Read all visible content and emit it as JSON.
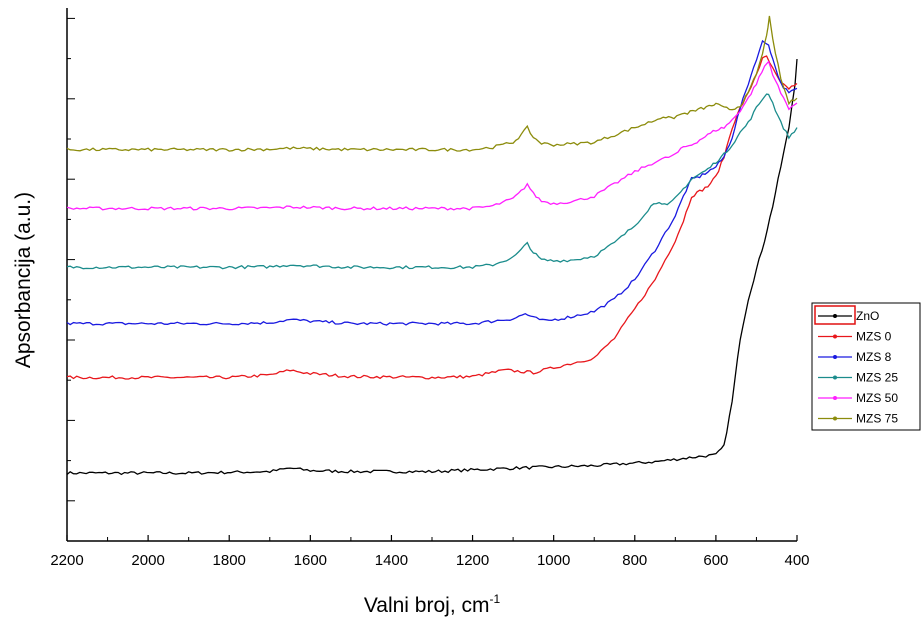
{
  "chart_data": {
    "type": "line",
    "xlabel": "Valni broj, cm",
    "xlabel_sup": "-1",
    "ylabel": "Apsorbancija (a.u.)",
    "xlim": [
      2200,
      400
    ],
    "x_reversed": true,
    "ylim": [
      0,
      1
    ],
    "y_ticks_labeled": false,
    "grid": false,
    "legend_position": "right",
    "x_ticks": [
      "2200",
      "2000",
      "1800",
      "1600",
      "1400",
      "1200",
      "1000",
      "800",
      "600",
      "400"
    ],
    "series": [
      {
        "name": "ZnO",
        "color": "#000000",
        "points": [
          [
            2200,
            0.055
          ],
          [
            1900,
            0.055
          ],
          [
            1700,
            0.058
          ],
          [
            1650,
            0.065
          ],
          [
            1600,
            0.06
          ],
          [
            1500,
            0.058
          ],
          [
            1300,
            0.058
          ],
          [
            1100,
            0.065
          ],
          [
            900,
            0.07
          ],
          [
            750,
            0.078
          ],
          [
            650,
            0.088
          ],
          [
            600,
            0.092
          ],
          [
            580,
            0.11
          ],
          [
            560,
            0.2
          ],
          [
            540,
            0.33
          ],
          [
            520,
            0.41
          ],
          [
            500,
            0.47
          ],
          [
            480,
            0.53
          ],
          [
            460,
            0.6
          ],
          [
            440,
            0.68
          ],
          [
            420,
            0.76
          ],
          [
            405,
            0.85
          ],
          [
            400,
            0.9
          ]
        ]
      },
      {
        "name": "MZS 0",
        "color": "#e8171c",
        "points": [
          [
            2200,
            0.25
          ],
          [
            2000,
            0.25
          ],
          [
            1800,
            0.25
          ],
          [
            1700,
            0.255
          ],
          [
            1650,
            0.265
          ],
          [
            1600,
            0.258
          ],
          [
            1500,
            0.252
          ],
          [
            1300,
            0.25
          ],
          [
            1200,
            0.252
          ],
          [
            1120,
            0.265
          ],
          [
            1050,
            0.26
          ],
          [
            1000,
            0.27
          ],
          [
            950,
            0.28
          ],
          [
            900,
            0.29
          ],
          [
            850,
            0.33
          ],
          [
            800,
            0.39
          ],
          [
            750,
            0.45
          ],
          [
            700,
            0.53
          ],
          [
            680,
            0.57
          ],
          [
            660,
            0.62
          ],
          [
            640,
            0.63
          ],
          [
            620,
            0.64
          ],
          [
            600,
            0.66
          ],
          [
            580,
            0.7
          ],
          [
            560,
            0.76
          ],
          [
            540,
            0.8
          ],
          [
            520,
            0.83
          ],
          [
            500,
            0.87
          ],
          [
            485,
            0.9
          ],
          [
            475,
            0.905
          ],
          [
            460,
            0.88
          ],
          [
            440,
            0.85
          ],
          [
            420,
            0.84
          ],
          [
            400,
            0.85
          ]
        ]
      },
      {
        "name": "MZS 8",
        "color": "#1a1ae0",
        "points": [
          [
            2200,
            0.36
          ],
          [
            2000,
            0.36
          ],
          [
            1800,
            0.36
          ],
          [
            1700,
            0.362
          ],
          [
            1650,
            0.368
          ],
          [
            1600,
            0.365
          ],
          [
            1500,
            0.36
          ],
          [
            1300,
            0.36
          ],
          [
            1200,
            0.36
          ],
          [
            1100,
            0.37
          ],
          [
            1070,
            0.38
          ],
          [
            1050,
            0.372
          ],
          [
            1020,
            0.365
          ],
          [
            950,
            0.375
          ],
          [
            900,
            0.385
          ],
          [
            850,
            0.41
          ],
          [
            800,
            0.45
          ],
          [
            750,
            0.51
          ],
          [
            700,
            0.58
          ],
          [
            680,
            0.62
          ],
          [
            660,
            0.655
          ],
          [
            640,
            0.66
          ],
          [
            620,
            0.67
          ],
          [
            600,
            0.68
          ],
          [
            580,
            0.7
          ],
          [
            560,
            0.74
          ],
          [
            540,
            0.8
          ],
          [
            520,
            0.85
          ],
          [
            500,
            0.9
          ],
          [
            485,
            0.935
          ],
          [
            470,
            0.93
          ],
          [
            460,
            0.9
          ],
          [
            440,
            0.85
          ],
          [
            420,
            0.83
          ],
          [
            400,
            0.84
          ]
        ]
      },
      {
        "name": "MZS 25",
        "color": "#1b8c8c",
        "points": [
          [
            2200,
            0.475
          ],
          [
            2000,
            0.475
          ],
          [
            1800,
            0.475
          ],
          [
            1700,
            0.476
          ],
          [
            1650,
            0.48
          ],
          [
            1600,
            0.478
          ],
          [
            1500,
            0.475
          ],
          [
            1300,
            0.475
          ],
          [
            1200,
            0.475
          ],
          [
            1150,
            0.48
          ],
          [
            1100,
            0.495
          ],
          [
            1080,
            0.51
          ],
          [
            1065,
            0.525
          ],
          [
            1050,
            0.505
          ],
          [
            1030,
            0.49
          ],
          [
            1000,
            0.488
          ],
          [
            950,
            0.49
          ],
          [
            900,
            0.498
          ],
          [
            850,
            0.525
          ],
          [
            800,
            0.56
          ],
          [
            760,
            0.6
          ],
          [
            740,
            0.61
          ],
          [
            720,
            0.6
          ],
          [
            700,
            0.615
          ],
          [
            680,
            0.635
          ],
          [
            660,
            0.655
          ],
          [
            640,
            0.665
          ],
          [
            620,
            0.675
          ],
          [
            600,
            0.69
          ],
          [
            580,
            0.705
          ],
          [
            560,
            0.725
          ],
          [
            540,
            0.75
          ],
          [
            520,
            0.77
          ],
          [
            500,
            0.8
          ],
          [
            480,
            0.825
          ],
          [
            470,
            0.83
          ],
          [
            460,
            0.81
          ],
          [
            440,
            0.77
          ],
          [
            420,
            0.74
          ],
          [
            400,
            0.76
          ]
        ]
      },
      {
        "name": "MZS 50",
        "color": "#ff1fff",
        "points": [
          [
            2200,
            0.595
          ],
          [
            2000,
            0.595
          ],
          [
            1800,
            0.595
          ],
          [
            1700,
            0.596
          ],
          [
            1650,
            0.598
          ],
          [
            1600,
            0.597
          ],
          [
            1500,
            0.595
          ],
          [
            1300,
            0.595
          ],
          [
            1200,
            0.595
          ],
          [
            1150,
            0.6
          ],
          [
            1100,
            0.615
          ],
          [
            1080,
            0.63
          ],
          [
            1065,
            0.645
          ],
          [
            1050,
            0.625
          ],
          [
            1030,
            0.61
          ],
          [
            1000,
            0.605
          ],
          [
            950,
            0.61
          ],
          [
            900,
            0.62
          ],
          [
            850,
            0.645
          ],
          [
            800,
            0.67
          ],
          [
            750,
            0.69
          ],
          [
            700,
            0.705
          ],
          [
            680,
            0.72
          ],
          [
            660,
            0.725
          ],
          [
            640,
            0.735
          ],
          [
            620,
            0.745
          ],
          [
            600,
            0.755
          ],
          [
            580,
            0.76
          ],
          [
            560,
            0.775
          ],
          [
            540,
            0.795
          ],
          [
            520,
            0.82
          ],
          [
            500,
            0.85
          ],
          [
            480,
            0.885
          ],
          [
            470,
            0.895
          ],
          [
            460,
            0.87
          ],
          [
            440,
            0.83
          ],
          [
            420,
            0.8
          ],
          [
            400,
            0.81
          ]
        ]
      },
      {
        "name": "MZS 75",
        "color": "#8c8c0c",
        "points": [
          [
            2200,
            0.715
          ],
          [
            2000,
            0.715
          ],
          [
            1800,
            0.715
          ],
          [
            1700,
            0.716
          ],
          [
            1650,
            0.718
          ],
          [
            1600,
            0.717
          ],
          [
            1500,
            0.715
          ],
          [
            1300,
            0.715
          ],
          [
            1200,
            0.715
          ],
          [
            1150,
            0.72
          ],
          [
            1100,
            0.73
          ],
          [
            1080,
            0.745
          ],
          [
            1065,
            0.76
          ],
          [
            1050,
            0.74
          ],
          [
            1030,
            0.728
          ],
          [
            1000,
            0.725
          ],
          [
            950,
            0.727
          ],
          [
            900,
            0.73
          ],
          [
            850,
            0.745
          ],
          [
            800,
            0.76
          ],
          [
            750,
            0.775
          ],
          [
            730,
            0.783
          ],
          [
            710,
            0.778
          ],
          [
            690,
            0.786
          ],
          [
            670,
            0.79
          ],
          [
            650,
            0.795
          ],
          [
            630,
            0.8
          ],
          [
            610,
            0.805
          ],
          [
            600,
            0.808
          ],
          [
            580,
            0.8
          ],
          [
            560,
            0.797
          ],
          [
            540,
            0.805
          ],
          [
            520,
            0.83
          ],
          [
            500,
            0.87
          ],
          [
            485,
            0.91
          ],
          [
            475,
            0.95
          ],
          [
            468,
            0.985
          ],
          [
            460,
            0.94
          ],
          [
            440,
            0.86
          ],
          [
            420,
            0.81
          ],
          [
            400,
            0.82
          ]
        ]
      }
    ]
  }
}
